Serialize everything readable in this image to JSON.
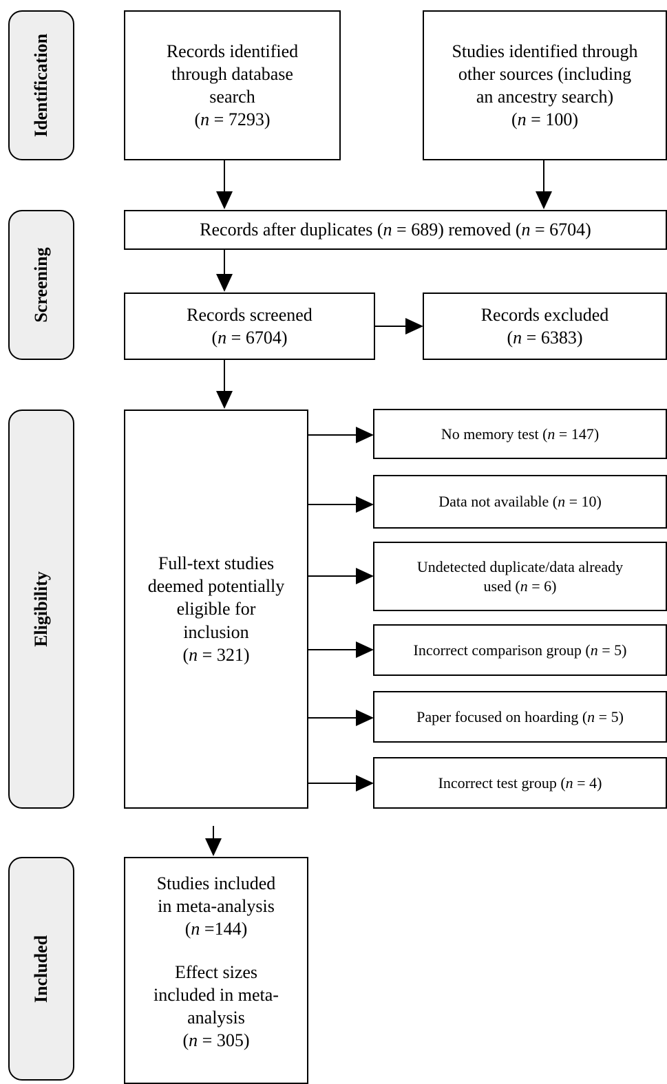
{
  "stages": {
    "identification": "Identification",
    "screening": "Screening",
    "eligibility": "Eligibility",
    "included": "Included"
  },
  "identification": {
    "database": {
      "lines": [
        "Records identified",
        "through database",
        "search"
      ],
      "n_prefix": "n",
      "n_value": " = 7293)"
    },
    "other": {
      "lines": [
        "Studies identified through",
        "other sources (including",
        "an ancestry search)"
      ],
      "n_prefix": "n",
      "n_value": " = 100)"
    }
  },
  "screening": {
    "after_duplicates": {
      "part1": "Records after duplicates (",
      "n1": "n",
      "part2": " = 689) removed (",
      "n2": "n",
      "part3": " = 6704)"
    },
    "screened": {
      "line": "Records screened",
      "n_prefix": "n",
      "n_value": " = 6704)"
    },
    "excluded": {
      "line": "Records excluded",
      "n_prefix": "n",
      "n_value": " = 6383)"
    }
  },
  "eligibility": {
    "full_text": {
      "lines": [
        "Full-text studies",
        "deemed potentially",
        "eligible for",
        "inclusion"
      ],
      "n_prefix": "n",
      "n_value": " = 321)"
    },
    "exclusions": [
      {
        "text": "No memory test (",
        "n_prefix": "n",
        "n_value": " = 147)"
      },
      {
        "text": "Data not available (",
        "n_prefix": "n",
        "n_value": " = 10)"
      },
      {
        "text": "Undetected duplicate/data already",
        "text2": "used (",
        "n_prefix": "n",
        "n_value": " = 6)"
      },
      {
        "text": "Incorrect comparison group (",
        "n_prefix": "n",
        "n_value": " = 5)"
      },
      {
        "text": "Paper focused on hoarding (",
        "n_prefix": "n",
        "n_value": " = 5)"
      },
      {
        "text": "Incorrect test group (",
        "n_prefix": "n",
        "n_value": " = 4)"
      }
    ]
  },
  "included": {
    "studies": {
      "lines": [
        "Studies included",
        "in meta-analysis"
      ],
      "n_prefix": "n",
      "n_value": " =144)"
    },
    "effects": {
      "lines": [
        "Effect sizes",
        "included in meta-",
        "analysis"
      ],
      "n_prefix": "n",
      "n_value": " = 305)"
    }
  }
}
